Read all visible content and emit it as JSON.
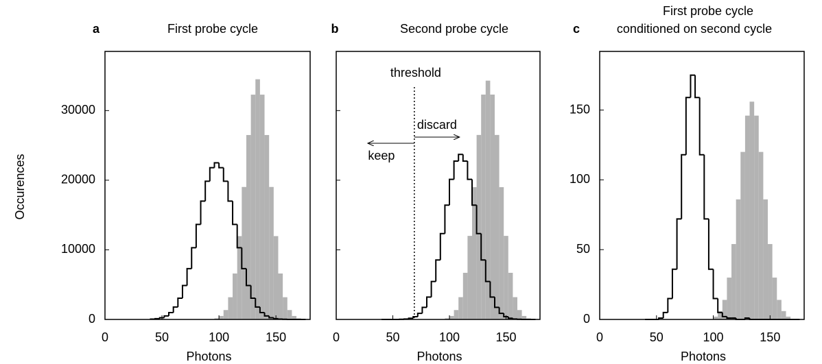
{
  "chart_data": [
    {
      "type": "histogram",
      "letter": "a",
      "title": [
        "First probe cycle"
      ],
      "xlabel": "Photons",
      "ylabel": "Occurences",
      "bins": [
        40,
        44,
        48,
        52,
        56,
        60,
        64,
        68,
        72,
        76,
        80,
        84,
        88,
        92,
        96,
        100,
        104,
        108,
        112,
        116,
        120,
        124,
        128,
        132,
        136,
        140,
        144,
        148,
        152,
        156,
        160,
        164,
        168,
        172,
        176
      ],
      "series": [
        {
          "color": "#b3b3b3",
          "style": "filled",
          "values": [
            0,
            0,
            0,
            0,
            0,
            0,
            0,
            0,
            0,
            0,
            0,
            0,
            0,
            0,
            160,
            500,
            1350,
            3190,
            6600,
            11970,
            19030,
            26490,
            32290,
            34500,
            32290,
            26490,
            19030,
            11970,
            6600,
            3190,
            1350,
            500,
            160,
            0
          ]
        },
        {
          "color": "#000000",
          "style": "step",
          "values": [
            50,
            115,
            250,
            510,
            990,
            1790,
            3050,
            4870,
            7300,
            10300,
            13650,
            17000,
            19850,
            21800,
            22500,
            21800,
            19850,
            17000,
            13650,
            10300,
            7300,
            4870,
            3050,
            1790,
            990,
            510,
            250,
            115,
            50,
            20,
            0,
            0,
            0,
            0
          ]
        }
      ],
      "xlim": [
        0,
        180
      ],
      "xticks": [
        0,
        50,
        100,
        150
      ],
      "ylim": [
        0,
        38500
      ],
      "yticks": [
        0,
        10000,
        20000,
        30000
      ],
      "ytick_labels": true
    },
    {
      "type": "histogram",
      "letter": "b",
      "title": [
        "Second probe cycle"
      ],
      "xlabel": "Photons",
      "bins": [
        40,
        44,
        48,
        52,
        56,
        60,
        64,
        68,
        72,
        76,
        80,
        84,
        88,
        92,
        96,
        100,
        104,
        108,
        112,
        116,
        120,
        124,
        128,
        132,
        136,
        140,
        144,
        148,
        152,
        156,
        160,
        164,
        168,
        172,
        176
      ],
      "series": [
        {
          "color": "#b3b3b3",
          "style": "filled",
          "values": [
            0,
            0,
            0,
            0,
            0,
            0,
            0,
            0,
            0,
            0,
            0,
            0,
            0,
            0,
            160,
            500,
            1350,
            3200,
            6700,
            12000,
            19000,
            26500,
            32300,
            34300,
            32300,
            26500,
            19000,
            12000,
            6700,
            3200,
            1350,
            500,
            160,
            0
          ]
        },
        {
          "color": "#000000",
          "style": "step",
          "values": [
            0,
            0,
            0,
            0,
            20,
            66,
            170,
            400,
            870,
            1740,
            3210,
            5450,
            8540,
            12330,
            16420,
            20130,
            22750,
            23700,
            22750,
            20130,
            16420,
            12330,
            8540,
            5450,
            3210,
            1740,
            870,
            400,
            170,
            66,
            20,
            0,
            0,
            0
          ]
        }
      ],
      "threshold": {
        "value": 69,
        "label": "threshold"
      },
      "annotations": [
        "discard",
        "keep"
      ],
      "xlim": [
        0,
        180
      ],
      "xticks": [
        0,
        50,
        100,
        150
      ],
      "ylim": [
        0,
        38500
      ],
      "yticks": [
        0,
        10000,
        20000,
        30000
      ],
      "ytick_labels": false
    },
    {
      "type": "histogram",
      "letter": "c",
      "title": [
        "First probe cycle",
        "conditioned on second cycle"
      ],
      "xlabel": "Photons",
      "bins": [
        40,
        44,
        48,
        52,
        56,
        60,
        64,
        68,
        72,
        76,
        80,
        84,
        88,
        92,
        96,
        100,
        104,
        108,
        112,
        116,
        120,
        124,
        128,
        132,
        136,
        140,
        144,
        148,
        152,
        156,
        160,
        164,
        168,
        172,
        176
      ],
      "series": [
        {
          "color": "#b3b3b3",
          "style": "filled",
          "values": [
            0,
            0,
            0,
            0,
            0,
            0,
            0,
            0,
            0,
            0,
            0,
            0,
            0,
            0,
            0,
            2,
            6,
            14,
            30,
            54,
            86,
            120,
            146,
            156,
            146,
            120,
            86,
            54,
            30,
            14,
            6,
            2,
            0,
            0
          ]
        },
        {
          "color": "#000000",
          "style": "step",
          "values": [
            0,
            0,
            0,
            1,
            5,
            15,
            36,
            72,
            118,
            159,
            175,
            159,
            118,
            72,
            36,
            15,
            5,
            2,
            1,
            1,
            0,
            0,
            1,
            0,
            0,
            0,
            0,
            0,
            0,
            0,
            0,
            0,
            0,
            0
          ]
        }
      ],
      "xlim": [
        0,
        180
      ],
      "xticks": [
        0,
        50,
        100,
        150
      ],
      "ylim": [
        0,
        192
      ],
      "yticks": [
        0,
        50,
        100,
        150
      ],
      "ytick_labels": true
    }
  ]
}
